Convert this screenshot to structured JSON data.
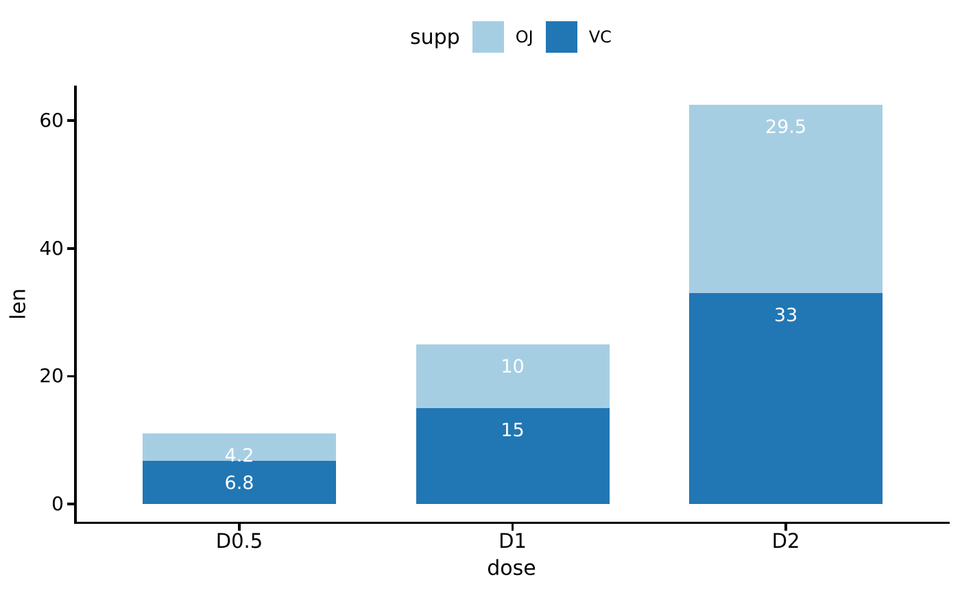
{
  "chart_data": {
    "type": "stacked_bar",
    "title": "",
    "xlabel": "dose",
    "ylabel": "len",
    "categories": [
      "D0.5",
      "D1",
      "D2"
    ],
    "series_bottom_to_top": [
      {
        "name": "VC",
        "color": "#2176b4",
        "values": [
          6.8,
          15,
          33
        ],
        "value_labels": [
          "6.8",
          "15",
          "33"
        ]
      },
      {
        "name": "OJ",
        "color": "#a6cee3",
        "values": [
          4.2,
          10,
          29.5
        ],
        "value_labels": [
          "4.2",
          "10",
          "29.5"
        ]
      }
    ],
    "totals": [
      11,
      25,
      62.5
    ],
    "y_ticks": [
      0,
      20,
      40,
      60
    ],
    "ylim": [
      0,
      68
    ],
    "grid": "off",
    "bar_label_color": "#ffffff",
    "legend": {
      "title": "supp",
      "position": "top",
      "order": [
        "OJ",
        "VC"
      ]
    }
  }
}
